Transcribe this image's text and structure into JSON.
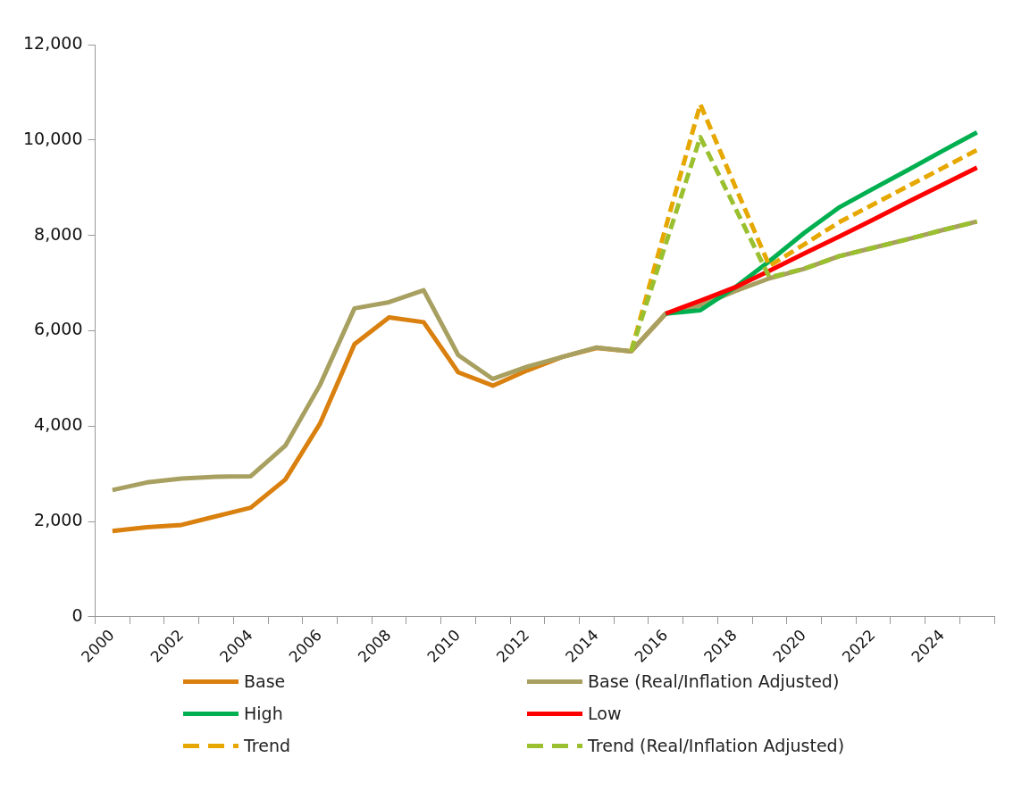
{
  "chart_data": {
    "type": "line",
    "categories": [
      "2000",
      null,
      "2002",
      null,
      "2004",
      null,
      "2006",
      null,
      "2008",
      null,
      "2010",
      null,
      "2012",
      null,
      "2014",
      null,
      "2016",
      null,
      "2018",
      null,
      "2020",
      null,
      "2022",
      null,
      "2024",
      null
    ],
    "ylim": [
      0,
      12000
    ],
    "yticks": [
      0,
      {
        "value": 2000,
        "label": "2,000"
      },
      {
        "value": 4000,
        "label": "4,000"
      },
      {
        "value": 6000,
        "label": "6,000"
      },
      {
        "value": 8000,
        "label": "8,000"
      },
      {
        "value": 10000,
        "label": "10,000"
      },
      {
        "value": 12000,
        "label": "12,000"
      }
    ],
    "grid": false,
    "legend": "bottom",
    "marker": "none",
    "series": [
      {
        "name": "Base",
        "color": "#d9800f",
        "line_style": "solid",
        "values": [
          1800,
          1880,
          1930,
          2110,
          2290,
          2880,
          4050,
          5720,
          6280,
          6180,
          5130,
          4850,
          5170,
          5450,
          5640,
          5570,
          6360,
          null,
          null,
          null,
          null,
          null,
          null,
          null,
          null,
          null
        ]
      },
      {
        "name": "Base (Real/Inflation Adjusted)",
        "color": "#a8a060",
        "line_style": "solid",
        "values": [
          2660,
          2820,
          2900,
          2940,
          2950,
          3590,
          4860,
          6470,
          6600,
          6850,
          5490,
          4990,
          5250,
          5450,
          5650,
          5570,
          6360,
          6530,
          6830,
          7100,
          7300,
          7560,
          7740,
          7920,
          8110,
          8290
        ]
      },
      {
        "name": "High",
        "color": "#00b050",
        "line_style": "solid",
        "values": [
          null,
          null,
          null,
          null,
          null,
          null,
          null,
          null,
          null,
          null,
          null,
          null,
          null,
          null,
          null,
          null,
          6360,
          6430,
          6910,
          7460,
          8050,
          8580,
          8980,
          9370,
          9770,
          10160
        ]
      },
      {
        "name": "Low",
        "color": "#ff0000",
        "line_style": "solid",
        "values": [
          null,
          null,
          null,
          null,
          null,
          null,
          null,
          null,
          null,
          null,
          null,
          null,
          null,
          null,
          null,
          null,
          6360,
          6630,
          6910,
          7260,
          7620,
          7970,
          8330,
          8700,
          9060,
          9420
        ]
      },
      {
        "name": "Trend",
        "color": "#e6a800",
        "line_style": "dashed",
        "values": [
          null,
          null,
          null,
          null,
          null,
          null,
          null,
          null,
          null,
          null,
          null,
          null,
          null,
          null,
          null,
          5570,
          8170,
          10750,
          9040,
          7360,
          7810,
          8270,
          8650,
          9030,
          9410,
          9790
        ]
      },
      {
        "name": "Trend (Real/Inflation Adjusted)",
        "color": "#9ac030",
        "line_style": "dashed",
        "values": [
          null,
          null,
          null,
          null,
          null,
          null,
          null,
          null,
          null,
          null,
          null,
          null,
          null,
          null,
          null,
          5570,
          7820,
          10060,
          8590,
          7120,
          7300,
          7560,
          7740,
          7920,
          8110,
          8290
        ]
      }
    ]
  }
}
